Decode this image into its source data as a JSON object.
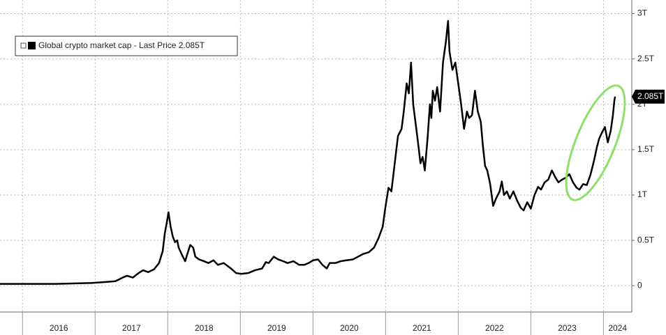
{
  "chart_data": {
    "type": "line",
    "series": [
      {
        "name": "Global crypto market cap - Last Price 2.085T",
        "color": "#000000",
        "values": [
          0.02,
          0.02,
          0.02,
          0.03,
          0.04,
          0.05,
          0.09,
          0.11,
          0.09,
          0.14,
          0.17,
          0.15,
          0.18,
          0.25,
          0.38,
          0.58,
          0.71,
          0.81,
          0.65,
          0.54,
          0.48,
          0.5,
          0.42,
          0.35,
          0.27,
          0.35,
          0.45,
          0.42,
          0.32,
          0.29,
          0.27,
          0.25,
          0.28,
          0.23,
          0.25,
          0.19,
          0.14,
          0.13,
          0.14,
          0.17,
          0.19,
          0.26,
          0.25,
          0.32,
          0.29,
          0.27,
          0.25,
          0.27,
          0.23,
          0.23,
          0.25,
          0.28,
          0.29,
          0.23,
          0.19,
          0.25,
          0.25,
          0.27,
          0.28,
          0.29,
          0.32,
          0.35,
          0.37,
          0.42,
          0.52,
          0.65,
          0.88,
          1.08,
          1.04,
          1.38,
          1.65,
          1.73,
          1.92,
          2.23,
          2.12,
          2.46,
          2.0,
          1.81,
          1.62,
          1.35,
          1.42,
          1.27,
          1.65,
          2.0,
          1.85,
          2.15,
          2.04,
          2.19,
          1.92,
          2.46,
          2.69,
          2.92,
          2.58,
          2.38,
          2.46,
          2.23,
          2.0,
          1.73,
          1.92,
          1.85,
          1.88,
          2.15,
          1.92,
          1.81,
          1.54,
          1.32,
          1.27,
          1.12,
          0.88,
          0.96,
          1.04,
          1.15,
          1.0,
          1.04,
          0.96,
          1.04,
          0.94,
          0.86,
          0.83,
          0.92,
          0.85,
          1.0,
          1.09,
          1.06,
          1.14,
          1.17,
          1.27,
          1.19,
          1.14,
          1.17,
          1.19,
          1.23,
          1.14,
          1.08,
          1.06,
          1.12,
          1.11,
          1.22,
          1.38,
          1.53,
          1.62,
          1.69,
          1.75,
          1.58,
          1.71,
          1.88,
          2.04,
          2.085
        ]
      }
    ],
    "x": [
      2015.69,
      2015.98,
      2016.46,
      2016.94,
      2017.13,
      2017.28,
      2017.38,
      2017.44,
      2017.52,
      2017.6,
      2017.66,
      2017.73,
      2017.81,
      2017.88,
      2017.93,
      2017.96,
      2017.99,
      2018.01,
      2018.04,
      2018.07,
      2018.1,
      2018.13,
      2018.15,
      2018.19,
      2018.24,
      2018.27,
      2018.31,
      2018.35,
      2018.38,
      2018.43,
      2018.5,
      2018.56,
      2018.63,
      2018.69,
      2018.77,
      2018.87,
      2018.94,
      2019.01,
      2019.11,
      2019.2,
      2019.3,
      2019.35,
      2019.39,
      2019.46,
      2019.52,
      2019.59,
      2019.65,
      2019.73,
      2019.81,
      2019.88,
      2019.94,
      2020.0,
      2020.07,
      2020.13,
      2020.19,
      2020.23,
      2020.31,
      2020.38,
      2020.46,
      2020.55,
      2020.62,
      2020.69,
      2020.77,
      2020.84,
      2020.9,
      2020.96,
      2021.0,
      2021.04,
      2021.08,
      2021.13,
      2021.17,
      2021.22,
      2021.25,
      2021.29,
      2021.32,
      2021.35,
      2021.38,
      2021.41,
      2021.44,
      2021.48,
      2021.51,
      2021.54,
      2021.58,
      2021.61,
      2021.63,
      2021.65,
      2021.68,
      2021.71,
      2021.75,
      2021.79,
      2021.83,
      2021.86,
      2021.88,
      2021.92,
      2021.96,
      2022.0,
      2022.04,
      2022.08,
      2022.12,
      2022.15,
      2022.19,
      2022.23,
      2022.27,
      2022.31,
      2022.34,
      2022.37,
      2022.4,
      2022.44,
      2022.48,
      2022.52,
      2022.57,
      2022.6,
      2022.63,
      2022.67,
      2022.71,
      2022.76,
      2022.81,
      2022.86,
      2022.9,
      2022.95,
      2023.0,
      2023.05,
      2023.1,
      2023.14,
      2023.19,
      2023.24,
      2023.29,
      2023.34,
      2023.38,
      2023.43,
      2023.48,
      2023.53,
      2023.58,
      2023.63,
      2023.67,
      2023.72,
      2023.77,
      2023.82,
      2023.87,
      2023.91,
      2023.94,
      2023.98,
      2024.02,
      2024.06,
      2024.1,
      2024.13,
      2024.15,
      2024.16
    ],
    "xlim": [
      2015.69,
      2024.39
    ],
    "xticks": [
      2016,
      2017,
      2018,
      2019,
      2020,
      2021,
      2022,
      2023,
      2024
    ],
    "ylim": [
      -0.29,
      3.15
    ],
    "yticks": [
      0,
      {
        "value": 0.5,
        "label": "0.5T"
      },
      {
        "value": 1,
        "label": "1T"
      },
      {
        "value": 1.5,
        "label": "1.5T"
      },
      {
        "value": 2,
        "label": "2T"
      },
      {
        "value": 2.5,
        "label": "2.5T"
      },
      {
        "value": 3,
        "label": "3T"
      }
    ],
    "last_price": {
      "value": 2.085,
      "label": "2.085T"
    },
    "grid": true
  }
}
